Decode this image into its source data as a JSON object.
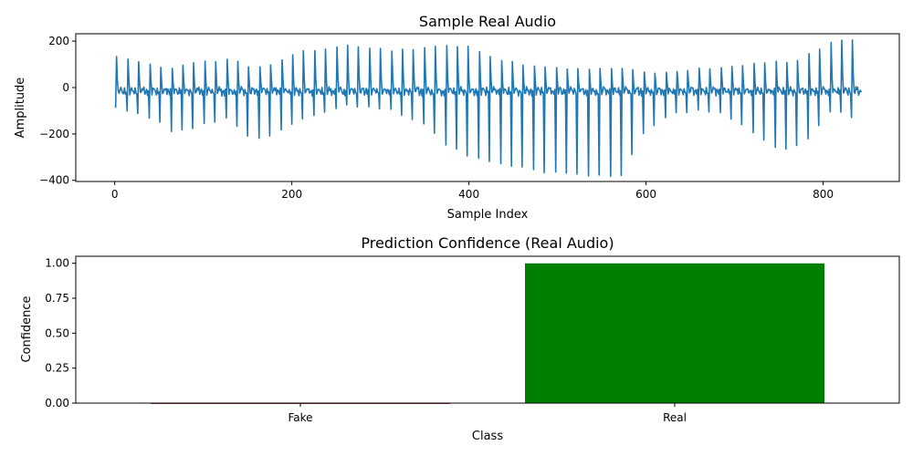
{
  "chart_data": [
    {
      "type": "line",
      "title": "Sample Real Audio",
      "xlabel": "Sample Index",
      "ylabel": "Amplitude",
      "xlim": [
        -44,
        886
      ],
      "ylim": [
        -405,
        232
      ],
      "xticks": [
        0,
        200,
        400,
        600,
        800
      ],
      "xtick_labels": [
        "0",
        "200",
        "400",
        "600",
        "800"
      ],
      "yticks": [
        -400,
        -200,
        0,
        200
      ],
      "ytick_labels": [
        "−400",
        "−200",
        "0",
        "200"
      ],
      "series": [
        {
          "color": "#1f77b4",
          "n_samples": 844,
          "period": 12.4,
          "peaks": [
            {
              "x": 2,
              "y": 138,
              "trough": -85
            },
            {
              "x": 54,
              "y": 90,
              "trough": -155
            },
            {
              "x": 66,
              "y": 78,
              "trough": -195
            },
            {
              "x": 79,
              "y": 95,
              "trough": -185
            },
            {
              "x": 128,
              "y": 125,
              "trough": -125
            },
            {
              "x": 153,
              "y": 92,
              "trough": -215
            },
            {
              "x": 169,
              "y": 85,
              "trough": -228
            },
            {
              "x": 206,
              "y": 150,
              "trough": -140
            },
            {
              "x": 260,
              "y": 178,
              "trough": -75
            },
            {
              "x": 310,
              "y": 160,
              "trough": -90
            },
            {
              "x": 352,
              "y": 175,
              "trough": -160
            },
            {
              "x": 376,
              "y": 182,
              "trough": -250
            },
            {
              "x": 400,
              "y": 175,
              "trough": -295
            },
            {
              "x": 440,
              "y": 110,
              "trough": -330
            },
            {
              "x": 490,
              "y": 92,
              "trough": -365
            },
            {
              "x": 520,
              "y": 80,
              "trough": -375
            },
            {
              "x": 545,
              "y": 85,
              "trough": -378
            },
            {
              "x": 572,
              "y": 80,
              "trough": -380
            },
            {
              "x": 600,
              "y": 62,
              "trough": -180
            },
            {
              "x": 630,
              "y": 72,
              "trough": -105
            },
            {
              "x": 680,
              "y": 88,
              "trough": -100
            },
            {
              "x": 740,
              "y": 110,
              "trough": -240
            },
            {
              "x": 754,
              "y": 105,
              "trough": -275
            },
            {
              "x": 778,
              "y": 130,
              "trough": -245
            },
            {
              "x": 810,
              "y": 195,
              "trough": -100
            },
            {
              "x": 834,
              "y": 205,
              "trough": -125
            }
          ],
          "end_value": -20
        }
      ]
    },
    {
      "type": "bar",
      "title": "Prediction Confidence (Real Audio)",
      "xlabel": "Class",
      "ylabel": "Confidence",
      "categories": [
        "Fake",
        "Real"
      ],
      "values": [
        0.0008,
        0.9992
      ],
      "colors": [
        "#8b0000",
        "#008000"
      ],
      "ylim": [
        0,
        1.05
      ],
      "yticks": [
        0,
        0.25,
        0.5,
        0.75,
        1.0
      ],
      "ytick_labels": [
        "0.00",
        "0.25",
        "0.50",
        "0.75",
        "1.00"
      ]
    }
  ]
}
